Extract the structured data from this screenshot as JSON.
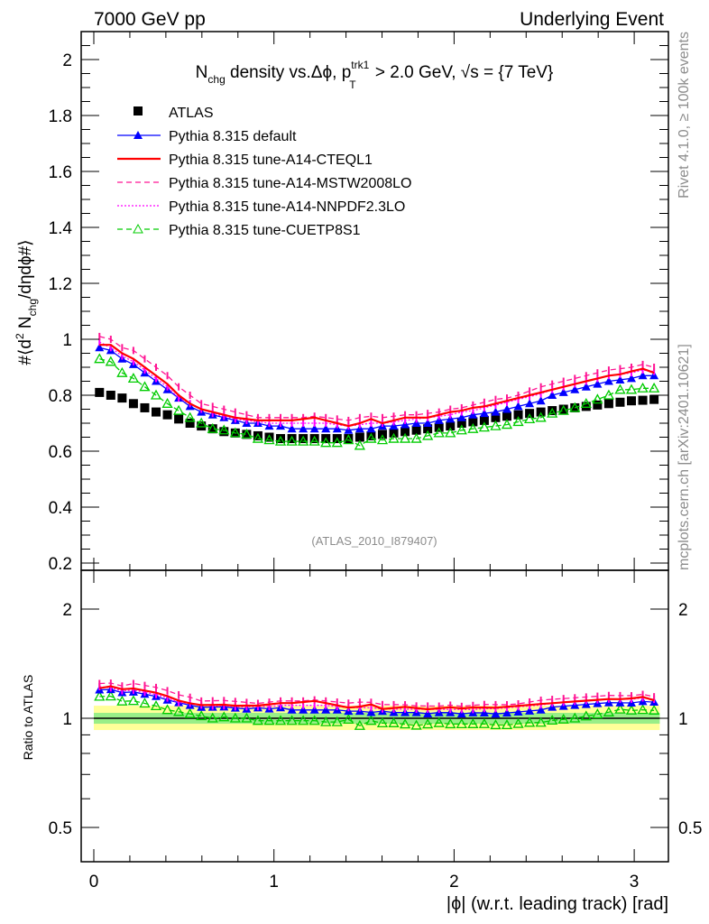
{
  "header": {
    "left": "7000 GeV pp",
    "right": "Underlying Event"
  },
  "side": {
    "rivet": "Rivet 4.1.0, ≥ 100k events",
    "mcplots": "mcplots.cern.ch [arXiv:2401.10621]"
  },
  "chart_data": {
    "type": "line",
    "title_parts": [
      "N",
      "chg",
      " density vs.Δϕ, p",
      "trk1",
      "T",
      " > 2.0 GeV, √s = {7 TeV}"
    ],
    "ylabel_parts": [
      "#⟨d",
      "2",
      " N",
      "chg",
      "/dηdϕ#⟩"
    ],
    "xlabel": "|ϕ| (w.r.t. leading track) [rad]",
    "ratio_ylabel": "Ratio to ATLAS",
    "analysis_tag": "(ATLAS_2010_I879407)",
    "xlim": [
      -0.1,
      3.2
    ],
    "ylim": [
      0.2,
      2.1
    ],
    "ratio_ylim": [
      0.4,
      2.5
    ],
    "x_ticks": [
      "0",
      "1",
      "2",
      "3"
    ],
    "y_ticks": [
      "0.2",
      "0.4",
      "0.6",
      "0.8",
      "1",
      "1.2",
      "1.4",
      "1.6",
      "1.8",
      "2"
    ],
    "ratio_ticks": [
      "0.5",
      "1",
      "2"
    ],
    "ratio_band": {
      "inner": [
        0.966,
        1.035
      ],
      "outer": [
        0.928,
        1.083
      ]
    },
    "nbins": 50,
    "legend_placement": "top-left",
    "data": {
      "name": "ATLAS",
      "color": "#000000",
      "values": [
        0.81,
        0.8,
        0.79,
        0.77,
        0.755,
        0.74,
        0.73,
        0.715,
        0.7,
        0.69,
        0.68,
        0.67,
        0.665,
        0.66,
        0.655,
        0.65,
        0.645,
        0.645,
        0.645,
        0.645,
        0.645,
        0.645,
        0.645,
        0.65,
        0.655,
        0.66,
        0.665,
        0.67,
        0.675,
        0.68,
        0.685,
        0.69,
        0.7,
        0.705,
        0.71,
        0.72,
        0.725,
        0.73,
        0.735,
        0.74,
        0.745,
        0.75,
        0.755,
        0.76,
        0.765,
        0.77,
        0.775,
        0.78,
        0.782,
        0.785
      ]
    },
    "series": [
      {
        "name": "Pythia 8.315 default",
        "color": "#0000ff",
        "style": "solid",
        "marker": "triangle-filled",
        "values": [
          0.97,
          0.96,
          0.93,
          0.91,
          0.88,
          0.85,
          0.82,
          0.79,
          0.76,
          0.74,
          0.73,
          0.72,
          0.71,
          0.7,
          0.7,
          0.69,
          0.69,
          0.68,
          0.68,
          0.68,
          0.68,
          0.68,
          0.675,
          0.68,
          0.68,
          0.69,
          0.69,
          0.695,
          0.7,
          0.7,
          0.71,
          0.715,
          0.72,
          0.73,
          0.735,
          0.74,
          0.75,
          0.76,
          0.77,
          0.78,
          0.8,
          0.81,
          0.82,
          0.83,
          0.84,
          0.85,
          0.855,
          0.86,
          0.87,
          0.87
        ]
      },
      {
        "name": "Pythia 8.315 tune-A14-CTEQL1",
        "color": "#ff0000",
        "style": "solid",
        "marker": "none",
        "values": [
          0.98,
          0.98,
          0.95,
          0.93,
          0.9,
          0.87,
          0.84,
          0.8,
          0.77,
          0.75,
          0.74,
          0.73,
          0.72,
          0.715,
          0.71,
          0.71,
          0.71,
          0.71,
          0.715,
          0.72,
          0.71,
          0.7,
          0.69,
          0.7,
          0.715,
          0.7,
          0.71,
          0.72,
          0.72,
          0.72,
          0.73,
          0.74,
          0.745,
          0.755,
          0.76,
          0.77,
          0.78,
          0.79,
          0.8,
          0.81,
          0.82,
          0.83,
          0.84,
          0.85,
          0.86,
          0.87,
          0.875,
          0.885,
          0.895,
          0.88
        ]
      },
      {
        "name": "Pythia 8.315 tune-A14-MSTW2008LO",
        "color": "#ff1493",
        "style": "dashed",
        "marker": "none",
        "values": [
          1.01,
          1.0,
          0.97,
          0.96,
          0.93,
          0.9,
          0.87,
          0.83,
          0.8,
          0.77,
          0.76,
          0.75,
          0.74,
          0.73,
          0.72,
          0.72,
          0.72,
          0.72,
          0.72,
          0.725,
          0.72,
          0.715,
          0.71,
          0.72,
          0.725,
          0.72,
          0.725,
          0.73,
          0.73,
          0.735,
          0.74,
          0.75,
          0.755,
          0.765,
          0.775,
          0.785,
          0.79,
          0.8,
          0.815,
          0.83,
          0.84,
          0.85,
          0.86,
          0.87,
          0.88,
          0.89,
          0.895,
          0.9,
          0.91,
          0.9
        ]
      },
      {
        "name": "Pythia 8.315 tune-A14-NNPDF2.3LO",
        "color": "#ff00ff",
        "style": "dotted",
        "marker": "none",
        "values": [
          0.99,
          0.97,
          0.94,
          0.92,
          0.89,
          0.86,
          0.83,
          0.79,
          0.77,
          0.75,
          0.735,
          0.725,
          0.715,
          0.71,
          0.705,
          0.7,
          0.7,
          0.7,
          0.7,
          0.7,
          0.7,
          0.695,
          0.69,
          0.695,
          0.7,
          0.7,
          0.705,
          0.71,
          0.715,
          0.72,
          0.725,
          0.73,
          0.74,
          0.745,
          0.755,
          0.765,
          0.775,
          0.785,
          0.795,
          0.805,
          0.82,
          0.83,
          0.84,
          0.85,
          0.86,
          0.87,
          0.875,
          0.88,
          0.89,
          0.885
        ]
      },
      {
        "name": "Pythia 8.315 tune-CUETP8S1",
        "color": "#00cc00",
        "style": "dashed",
        "marker": "triangle-open",
        "values": [
          0.93,
          0.92,
          0.88,
          0.86,
          0.83,
          0.8,
          0.77,
          0.745,
          0.72,
          0.7,
          0.68,
          0.675,
          0.665,
          0.66,
          0.645,
          0.64,
          0.635,
          0.635,
          0.635,
          0.635,
          0.63,
          0.63,
          0.64,
          0.62,
          0.645,
          0.64,
          0.645,
          0.645,
          0.645,
          0.655,
          0.665,
          0.665,
          0.675,
          0.68,
          0.685,
          0.69,
          0.695,
          0.705,
          0.715,
          0.72,
          0.735,
          0.745,
          0.755,
          0.77,
          0.785,
          0.8,
          0.82,
          0.82,
          0.825,
          0.825
        ]
      }
    ]
  }
}
